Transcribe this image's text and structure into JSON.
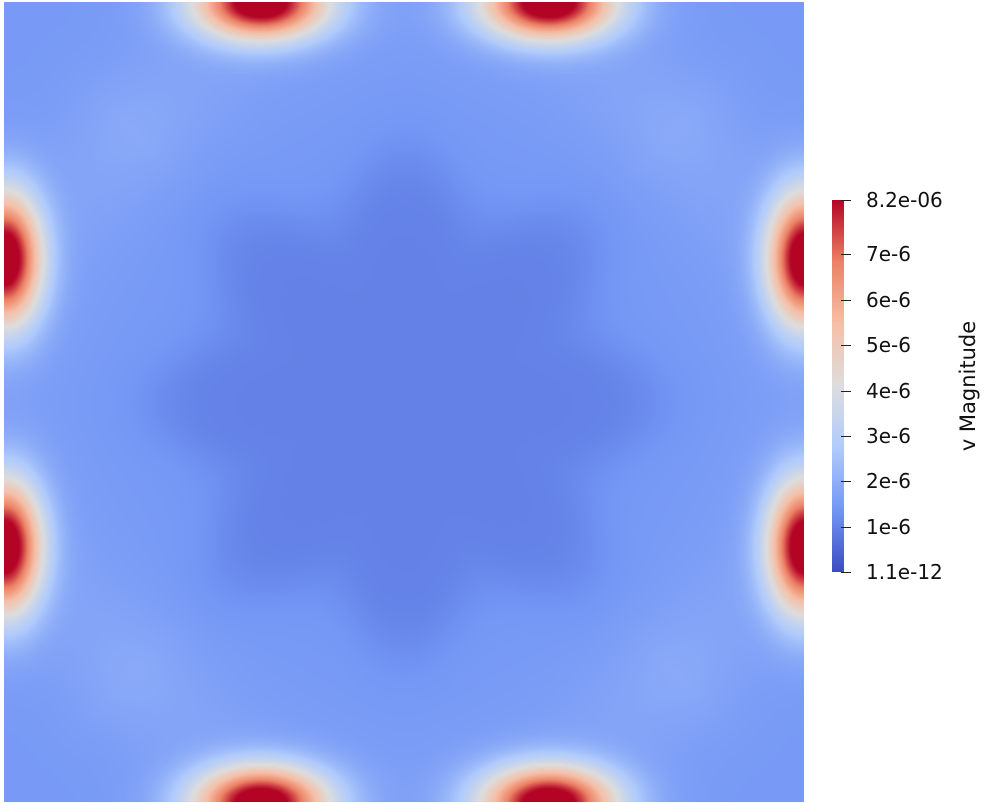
{
  "colorbar": {
    "title": "v Magnitude",
    "ticks": [
      "8.2e-06",
      "7e-6",
      "6e-6",
      "5e-6",
      "4e-6",
      "3e-6",
      "2e-6",
      "1e-6",
      "1.1e-12"
    ],
    "tick_values": [
      8.2e-06,
      7e-06,
      6e-06,
      5e-06,
      4e-06,
      3e-06,
      2e-06,
      1e-06,
      1.1e-12
    ],
    "range": [
      1.1e-12,
      8.2e-06
    ],
    "colormap": [
      "#3b4cc0",
      "#7396f5",
      "#b0cbfc",
      "#dddddd",
      "#f6bfa6",
      "#ec8165",
      "#b40426"
    ]
  },
  "field": {
    "background": "#3d5cb0",
    "center_color": "#2f4399",
    "hot_color": "#c0282c"
  }
}
